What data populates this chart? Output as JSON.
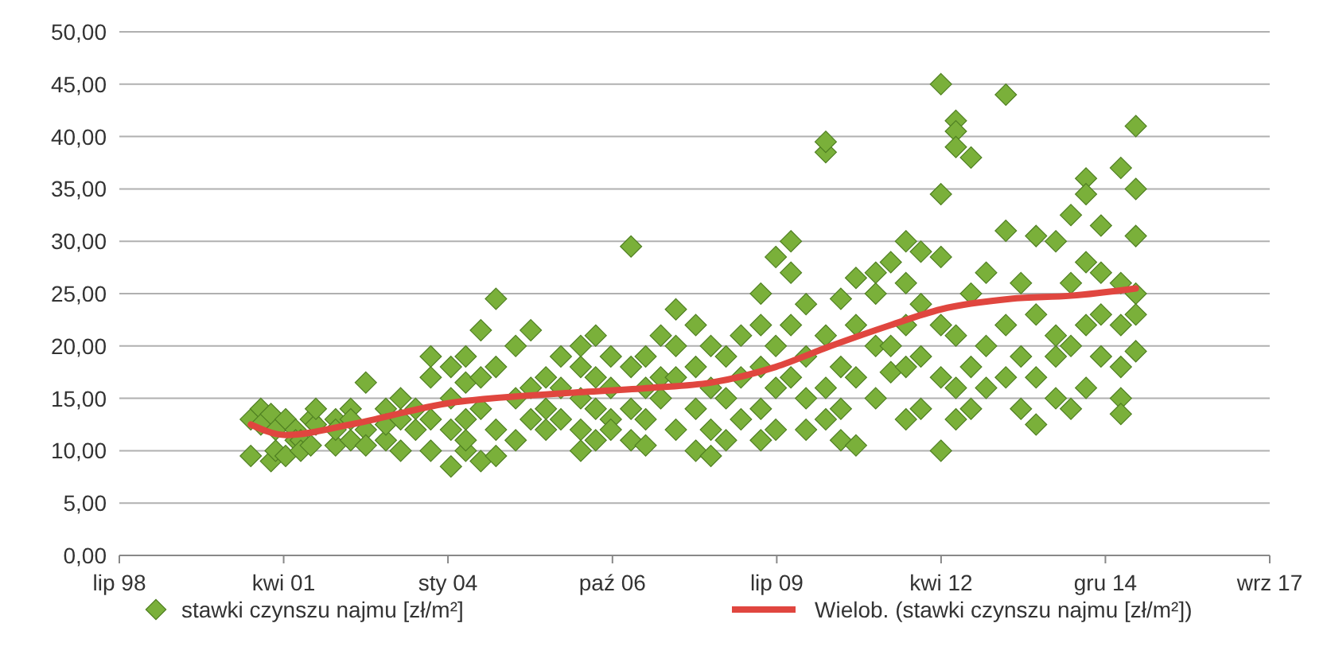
{
  "chart_data": {
    "type": "scatter",
    "grid": "y",
    "legend": "bottom",
    "xlim": [
      "1998-07-24",
      "2017-09-23"
    ],
    "xticks": [
      {
        "value": "1998-07-24",
        "label": "lip 98"
      },
      {
        "value": "2001-04-19",
        "label": "kwi 01"
      },
      {
        "value": "2004-01-14",
        "label": "sty 04"
      },
      {
        "value": "2006-10-11",
        "label": "paź 06"
      },
      {
        "value": "2009-07-07",
        "label": "lip 09"
      },
      {
        "value": "2012-04-02",
        "label": "kwi 12"
      },
      {
        "value": "2014-12-28",
        "label": "gru 14"
      },
      {
        "value": "2017-09-23",
        "label": "wrz 17"
      }
    ],
    "ylim": [
      0,
      50
    ],
    "yticks": [
      {
        "value": 0,
        "label": "0,00"
      },
      {
        "value": 5,
        "label": "5,00"
      },
      {
        "value": 10,
        "label": "10,00"
      },
      {
        "value": 15,
        "label": "15,00"
      },
      {
        "value": 20,
        "label": "20,00"
      },
      {
        "value": 25,
        "label": "25,00"
      },
      {
        "value": 30,
        "label": "30,00"
      },
      {
        "value": 35,
        "label": "35,00"
      },
      {
        "value": 40,
        "label": "40,00"
      },
      {
        "value": 45,
        "label": "45,00"
      },
      {
        "value": 50,
        "label": "50,00"
      }
    ],
    "series": [
      {
        "name": "stawki czynszu najmu [zł/m²]",
        "marker": "diamond",
        "color": "#7ab03a",
        "x": [
          "2000-10",
          "2000-10",
          "2000-12",
          "2000-12",
          "2001-02",
          "2001-02",
          "2001-03",
          "2001-03",
          "2001-05",
          "2001-05",
          "2001-07",
          "2001-07",
          "2001-08",
          "2001-08",
          "2001-10",
          "2001-10",
          "2001-11",
          "2001-11",
          "2002-03",
          "2002-03",
          "2002-03",
          "2002-06",
          "2002-06",
          "2002-06",
          "2002-09",
          "2002-09",
          "2002-09",
          "2003-01",
          "2003-01",
          "2003-01",
          "2003-04",
          "2003-04",
          "2003-04",
          "2003-07",
          "2003-07",
          "2003-10",
          "2003-10",
          "2003-10",
          "2003-10",
          "2004-02",
          "2004-02",
          "2004-02",
          "2004-02",
          "2004-05",
          "2004-05",
          "2004-05",
          "2004-05",
          "2004-05",
          "2004-08",
          "2004-08",
          "2004-08",
          "2004-08",
          "2004-11",
          "2004-11",
          "2004-11",
          "2004-11",
          "2005-03",
          "2005-03",
          "2005-03",
          "2005-06",
          "2005-06",
          "2005-06",
          "2005-09",
          "2005-09",
          "2005-09",
          "2005-12",
          "2005-12",
          "2005-12",
          "2006-04",
          "2006-04",
          "2006-04",
          "2006-04",
          "2006-04",
          "2006-07",
          "2006-07",
          "2006-07",
          "2006-07",
          "2006-10",
          "2006-10",
          "2006-10",
          "2006-10",
          "2007-02",
          "2007-02",
          "2007-02",
          "2007-02",
          "2007-05",
          "2007-05",
          "2007-05",
          "2007-05",
          "2007-08",
          "2007-08",
          "2007-08",
          "2007-11",
          "2007-11",
          "2007-11",
          "2007-11",
          "2008-03",
          "2008-03",
          "2008-03",
          "2008-03",
          "2008-06",
          "2008-06",
          "2008-06",
          "2008-06",
          "2008-09",
          "2008-09",
          "2008-09",
          "2008-12",
          "2008-12",
          "2008-12",
          "2009-04",
          "2009-04",
          "2009-04",
          "2009-04",
          "2009-04",
          "2009-07",
          "2009-07",
          "2009-07",
          "2009-07",
          "2009-10",
          "2009-10",
          "2009-10",
          "2009-10",
          "2010-01",
          "2010-01",
          "2010-01",
          "2010-01",
          "2010-05",
          "2010-05",
          "2010-05",
          "2010-05",
          "2010-05",
          "2010-08",
          "2010-08",
          "2010-08",
          "2010-08",
          "2010-11",
          "2010-11",
          "2010-11",
          "2010-11",
          "2011-03",
          "2011-03",
          "2011-03",
          "2011-03",
          "2011-06",
          "2011-06",
          "2011-06",
          "2011-09",
          "2011-09",
          "2011-09",
          "2011-09",
          "2011-09",
          "2011-12",
          "2011-12",
          "2011-12",
          "2011-12",
          "2012-04",
          "2012-04",
          "2012-04",
          "2012-04",
          "2012-04",
          "2012-04",
          "2012-07",
          "2012-07",
          "2012-07",
          "2012-07",
          "2012-07",
          "2012-07",
          "2012-10",
          "2012-10",
          "2012-10",
          "2012-10",
          "2013-01",
          "2013-01",
          "2013-01",
          "2013-05",
          "2013-05",
          "2013-05",
          "2013-05",
          "2013-08",
          "2013-08",
          "2013-08",
          "2013-11",
          "2013-11",
          "2013-11",
          "2013-11",
          "2014-03",
          "2014-03",
          "2014-03",
          "2014-03",
          "2014-06",
          "2014-06",
          "2014-06",
          "2014-06",
          "2014-09",
          "2014-09",
          "2014-09",
          "2014-09",
          "2014-09",
          "2014-12",
          "2014-12",
          "2014-12",
          "2014-12",
          "2015-04",
          "2015-04",
          "2015-04",
          "2015-04",
          "2015-04",
          "2015-04",
          "2015-07",
          "2015-07",
          "2015-07",
          "2015-07",
          "2015-07",
          "2015-07"
        ],
        "values": [
          13,
          9.5,
          14,
          12.5,
          13.5,
          9,
          10,
          12,
          13,
          9.5,
          12,
          11,
          11,
          10,
          10.5,
          13,
          12.5,
          14,
          13,
          10.5,
          12,
          14,
          11,
          13,
          16.5,
          12,
          10.5,
          14,
          11,
          12.5,
          13,
          15,
          10,
          12,
          14,
          17,
          19,
          13,
          10,
          18,
          12,
          15,
          8.5,
          19,
          16.5,
          10,
          13,
          11,
          21.5,
          17,
          14,
          9,
          24.5,
          18,
          12,
          9.5,
          20,
          15,
          11,
          21.5,
          13,
          16,
          17,
          14,
          12,
          19,
          16,
          13,
          20,
          18,
          15,
          12,
          10,
          21,
          17,
          14,
          11,
          19,
          16,
          13,
          12,
          29.5,
          18,
          14,
          11,
          19,
          16,
          13,
          10.5,
          21,
          17,
          15,
          23.5,
          20,
          17,
          12,
          22,
          18,
          14,
          10,
          20,
          16,
          12,
          9.5,
          19,
          15,
          11,
          21,
          17,
          13,
          25,
          22,
          18,
          14,
          11,
          28.5,
          20,
          16,
          12,
          30,
          27,
          22,
          17,
          24,
          19,
          15,
          12,
          38.5,
          39.5,
          21,
          16,
          13,
          24.5,
          18,
          14,
          11,
          26.5,
          22,
          17,
          10.5,
          27,
          25,
          20,
          15,
          17.5,
          28,
          20,
          30,
          26,
          22,
          18,
          13,
          29,
          24,
          19,
          14,
          45,
          34.5,
          28.5,
          22,
          17,
          10,
          41.5,
          40.5,
          39,
          21,
          16,
          13,
          38,
          25,
          18,
          14,
          27,
          20,
          16,
          44,
          31,
          22,
          17,
          26,
          19,
          14,
          30.5,
          23,
          17,
          12.5,
          30,
          21,
          15,
          19,
          32.5,
          26,
          20,
          14,
          36,
          34.5,
          28,
          22,
          16,
          31.5,
          27,
          23,
          19,
          37,
          26,
          22,
          18,
          15,
          13.5,
          41,
          35,
          30.5,
          25,
          23,
          19.5
        ]
      },
      {
        "name": "Wielob. (stawki czynszu najmu [zł/m²])",
        "type": "line",
        "color": "#e0463f",
        "line_style": "solid",
        "x": [
          "2000-10",
          "2001-05",
          "2002-06",
          "2004-01",
          "2006-01",
          "2007-06",
          "2008-06",
          "2009-07",
          "2010-06",
          "2011-06",
          "2012-04",
          "2013-06",
          "2014-06",
          "2015-07"
        ],
        "values": [
          12.5,
          11.5,
          12.5,
          14.5,
          15.5,
          16,
          16.5,
          18,
          20,
          22,
          23.5,
          24.5,
          24.8,
          25.5
        ]
      }
    ]
  }
}
